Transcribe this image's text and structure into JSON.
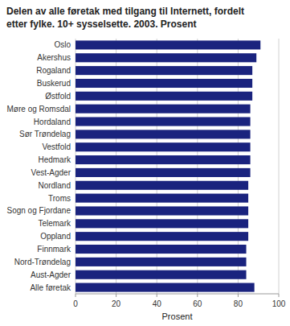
{
  "chart_data": {
    "type": "bar",
    "orientation": "horizontal",
    "title": "Delen av alle føretak med tilgang til Internett, fordelt\netter fylke. 10+ sysselsette. 2003. Prosent",
    "categories": [
      "Alle føretak",
      "Aust-Agder",
      "Nord-Trøndelag",
      "Finnmark",
      "Oppland",
      "Telemark",
      "Sogn og Fjordane",
      "Troms",
      "Nordland",
      "Vest-Agder",
      "Hedmark",
      "Vestfold",
      "Sør Trøndelag",
      "Hordaland",
      "Møre og Romsdal",
      "Østfold",
      "Buskerud",
      "Rogaland",
      "Akershus",
      "Oslo"
    ],
    "values": [
      88,
      84,
      84,
      84,
      85,
      85,
      85,
      85,
      85,
      86,
      86,
      86,
      86,
      86,
      86,
      87,
      87,
      87,
      89,
      91
    ],
    "color": "#1a237e",
    "x_label": "Prosent",
    "xlim": [
      0,
      100
    ],
    "xticks": [
      0,
      20,
      40,
      60,
      80,
      100
    ],
    "grid": true
  }
}
